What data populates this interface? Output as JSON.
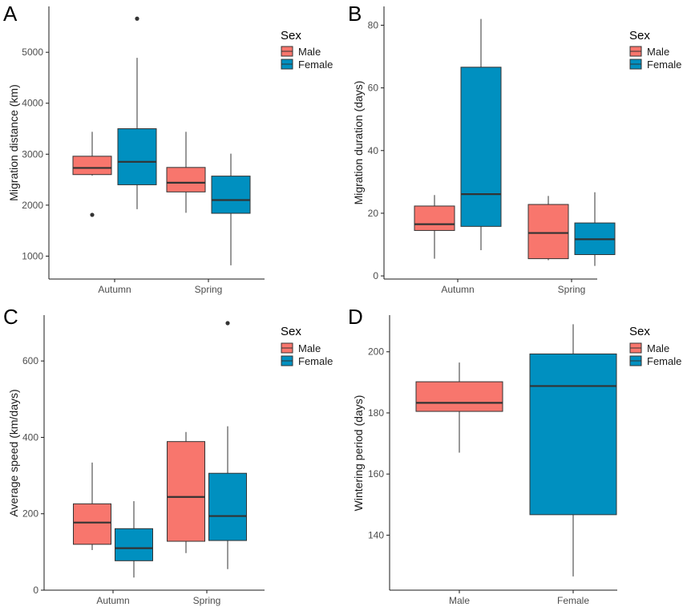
{
  "colors": {
    "male": "#f8766d",
    "female": "#0090c0",
    "median": "#333333",
    "axis": "#1a1a1a",
    "whisker": "#333333"
  },
  "chart_data": [
    {
      "type": "box",
      "panel": "A",
      "ylabel": "Migration distance (km)",
      "categories": [
        "Autumn",
        "Spring"
      ],
      "ylim": [
        550,
        5900
      ],
      "yticks": [
        1000,
        2000,
        3000,
        4000,
        5000
      ],
      "legend": {
        "title": "Sex",
        "placement": "right",
        "entries": [
          "Male",
          "Female"
        ]
      },
      "series": [
        {
          "name": "Male",
          "color_key": "male",
          "boxes": [
            {
              "category": "Autumn",
              "min": 2580,
              "q1": 2600,
              "median": 2730,
              "q3": 2960,
              "max": 3440,
              "outliers": [
                1810
              ]
            },
            {
              "category": "Spring",
              "min": 1850,
              "q1": 2260,
              "median": 2440,
              "q3": 2740,
              "max": 3440,
              "outliers": []
            }
          ]
        },
        {
          "name": "Female",
          "color_key": "female",
          "boxes": [
            {
              "category": "Autumn",
              "min": 1920,
              "q1": 2400,
              "median": 2850,
              "q3": 3500,
              "max": 4890,
              "outliers": [
                5660
              ]
            },
            {
              "category": "Spring",
              "min": 820,
              "q1": 1840,
              "median": 2100,
              "q3": 2570,
              "max": 3010,
              "outliers": []
            }
          ]
        }
      ]
    },
    {
      "type": "box",
      "panel": "B",
      "ylabel": "Migration duration (days)",
      "categories": [
        "Autumn",
        "Spring"
      ],
      "ylim": [
        -1,
        86
      ],
      "yticks": [
        0,
        20,
        40,
        60,
        80
      ],
      "legend": {
        "title": "Sex",
        "placement": "right",
        "entries": [
          "Male",
          "Female"
        ]
      },
      "series": [
        {
          "name": "Male",
          "color_key": "male",
          "boxes": [
            {
              "category": "Autumn",
              "min": 5.5,
              "q1": 14.5,
              "median": 16.5,
              "q3": 22.3,
              "max": 25.8,
              "outliers": []
            },
            {
              "category": "Spring",
              "min": 5.0,
              "q1": 5.5,
              "median": 13.7,
              "q3": 22.8,
              "max": 25.5,
              "outliers": []
            }
          ]
        },
        {
          "name": "Female",
          "color_key": "female",
          "boxes": [
            {
              "category": "Autumn",
              "min": 8.2,
              "q1": 15.8,
              "median": 26.1,
              "q3": 66.6,
              "max": 82.0,
              "outliers": []
            },
            {
              "category": "Spring",
              "min": 3.2,
              "q1": 6.8,
              "median": 11.7,
              "q3": 16.9,
              "max": 26.7,
              "outliers": []
            }
          ]
        }
      ]
    },
    {
      "type": "box",
      "panel": "C",
      "ylabel": "Average speed (km/days)",
      "categories": [
        "Autumn",
        "Spring"
      ],
      "ylim": [
        0,
        720
      ],
      "yticks": [
        0,
        200,
        400,
        600
      ],
      "legend": {
        "title": "Sex",
        "placement": "right",
        "entries": [
          "Male",
          "Female"
        ]
      },
      "series": [
        {
          "name": "Male",
          "color_key": "male",
          "boxes": [
            {
              "category": "Autumn",
              "min": 105,
              "q1": 120,
              "median": 177,
              "q3": 226,
              "max": 334,
              "outliers": []
            },
            {
              "category": "Spring",
              "min": 97,
              "q1": 128,
              "median": 244,
              "q3": 389,
              "max": 414,
              "outliers": []
            }
          ]
        },
        {
          "name": "Female",
          "color_key": "female",
          "boxes": [
            {
              "category": "Autumn",
              "min": 33,
              "q1": 77,
              "median": 110,
              "q3": 161,
              "max": 233,
              "outliers": []
            },
            {
              "category": "Spring",
              "min": 55,
              "q1": 130,
              "median": 194,
              "q3": 306,
              "max": 429,
              "outliers": [
                699
              ]
            }
          ]
        }
      ]
    },
    {
      "type": "box",
      "panel": "D",
      "ylabel": "Wintering period (days)",
      "categories": [
        "Male",
        "Female"
      ],
      "ylim": [
        122,
        212
      ],
      "yticks": [
        140,
        160,
        180,
        200
      ],
      "legend": {
        "title": "Sex",
        "placement": "right",
        "entries": [
          "Male",
          "Female"
        ]
      },
      "series": [
        {
          "name": "Male",
          "color_key": "male",
          "boxes": [
            {
              "category": "Male",
              "min": 167,
              "q1": 180.5,
              "median": 183.3,
              "q3": 190.2,
              "max": 196.5,
              "outliers": []
            }
          ]
        },
        {
          "name": "Female",
          "color_key": "female",
          "boxes": [
            {
              "category": "Female",
              "min": 126.5,
              "q1": 146.7,
              "median": 188.8,
              "q3": 199.3,
              "max": 209,
              "outliers": []
            }
          ]
        }
      ]
    }
  ]
}
